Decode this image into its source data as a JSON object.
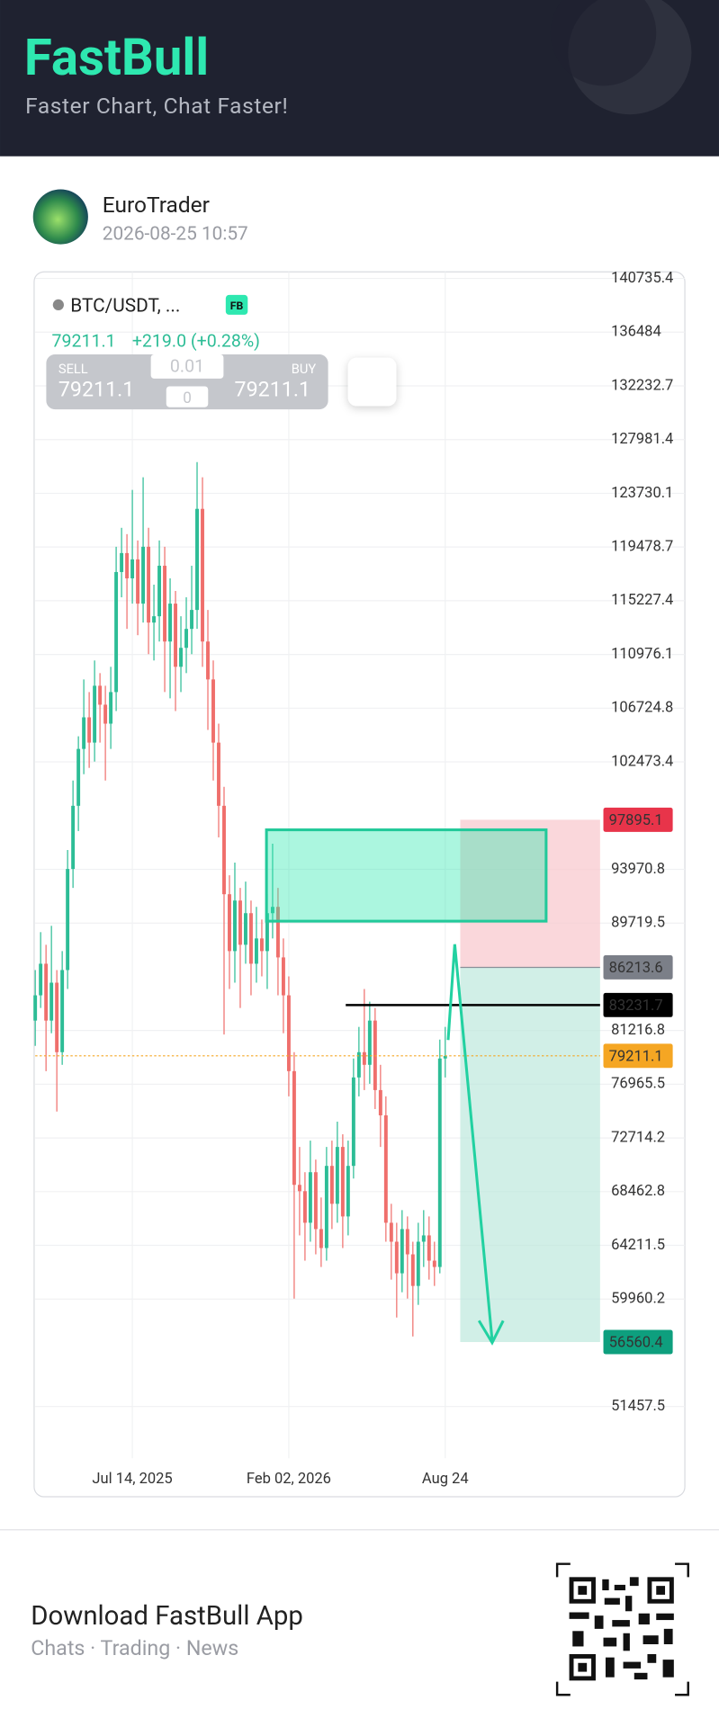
{
  "header": {
    "title": "FastBull",
    "tagline": "Faster Chart, Chat Faster!"
  },
  "user": {
    "name": "EuroTrader",
    "time": "2026-08-25 10:57"
  },
  "footer": {
    "title": "Download FastBull App",
    "subtitle": "Chats · Trading · News"
  },
  "chart_data": {
    "type": "candlestick",
    "symbol": "BTC/USDT, ...",
    "badge": "FB",
    "last_price": 79211.1,
    "change": "+219.0 (+0.28%)",
    "sell_label": "SELL",
    "sell_price": 79211.1,
    "buy_label": "BUY",
    "buy_price": 79211.1,
    "order_quantity": 0.01,
    "order_count": 0,
    "up_color": "#2dbd96",
    "down_color": "#ef6f6c",
    "grid": true,
    "xlim": [
      0,
      104.7
    ],
    "xticks": [
      {
        "value": 18,
        "label": "Jul 14, 2025"
      },
      {
        "value": 47,
        "label": "Feb 02, 2026"
      },
      {
        "value": 76,
        "label": "Aug 24"
      }
    ],
    "ylim": [
      47363,
      141258
    ],
    "yticks": [
      140735.4,
      136484.0,
      132232.7,
      127981.4,
      123730.1,
      119478.7,
      115227.4,
      110976.1,
      106724.8,
      102473.4,
      93970.8,
      89719.5,
      81216.8,
      76965.5,
      72714.2,
      68462.8,
      64211.5,
      59960.2,
      51457.5
    ],
    "open": [
      82000,
      84000,
      86500,
      82000,
      85000,
      79500,
      86000,
      94000,
      99000,
      103500,
      106000,
      104000,
      108500,
      107000,
      105500,
      108000,
      117500,
      119000,
      117000,
      118500,
      115000,
      119500,
      113500,
      114000,
      118000,
      112000,
      115000,
      110000,
      111500,
      113000,
      114500,
      122500,
      112000,
      109000,
      104000,
      99000,
      92000,
      87500,
      91500,
      88000,
      90500,
      86500,
      88500,
      87500,
      90500,
      91000,
      87000,
      84000,
      78000,
      69000,
      68500,
      66000,
      70000,
      65500,
      64000,
      70500,
      67500,
      72000,
      66500,
      70500,
      77500,
      79500,
      78500,
      82000,
      76500,
      74500,
      66000,
      64500,
      62000,
      65500,
      63500,
      61000,
      64500,
      65000,
      63000,
      62500,
      79000
    ],
    "high": [
      86000,
      89000,
      88000,
      89500,
      86000,
      87500,
      95500,
      101000,
      104500,
      109000,
      108000,
      110500,
      109500,
      108500,
      110000,
      119500,
      121000,
      120500,
      124000,
      120000,
      125000,
      121000,
      116500,
      120000,
      119500,
      117000,
      116000,
      114000,
      115500,
      118000,
      126200,
      125000,
      114500,
      110500,
      105500,
      100500,
      93500,
      94500,
      92500,
      93000,
      91500,
      91000,
      90000,
      92000,
      96000,
      92500,
      88500,
      85500,
      79500,
      72000,
      70000,
      72500,
      71000,
      68000,
      72000,
      72500,
      74000,
      73000,
      72500,
      79000,
      81500,
      84500,
      83500,
      83000,
      78500,
      76000,
      67500,
      66000,
      67000,
      66500,
      64500,
      66000,
      67000,
      66500,
      64500,
      80500,
      81500
    ],
    "low": [
      80000,
      83000,
      78000,
      81000,
      74800,
      78500,
      84500,
      92500,
      97000,
      101500,
      102000,
      102500,
      104000,
      101000,
      103500,
      106500,
      115500,
      113000,
      115000,
      112500,
      113500,
      111000,
      110500,
      112000,
      108000,
      107500,
      106500,
      108000,
      109500,
      111000,
      113000,
      110000,
      105000,
      101000,
      96500,
      80900,
      84500,
      85000,
      83000,
      86500,
      84000,
      85000,
      85500,
      84500,
      88500,
      84000,
      81000,
      76000,
      60000,
      65000,
      63000,
      64500,
      63500,
      62500,
      63000,
      65500,
      66000,
      64000,
      65000,
      69500,
      76000,
      76500,
      77000,
      75000,
      72000,
      64500,
      61500,
      58500,
      60500,
      60000,
      57000,
      59500,
      62500,
      61500,
      61000,
      62000,
      77500
    ],
    "close": [
      84000,
      86500,
      82000,
      85000,
      79500,
      86000,
      94000,
      99000,
      103500,
      106000,
      104000,
      108500,
      107000,
      105500,
      108000,
      117500,
      119000,
      117000,
      118500,
      115000,
      119500,
      113500,
      114000,
      118000,
      112000,
      115000,
      110000,
      111500,
      113000,
      114500,
      122500,
      112000,
      109000,
      104000,
      99000,
      92000,
      87500,
      91500,
      88000,
      90500,
      86500,
      88500,
      87500,
      90500,
      91000,
      87000,
      84000,
      78000,
      69000,
      68500,
      66000,
      70000,
      65500,
      64000,
      70500,
      67500,
      72000,
      66500,
      70500,
      77500,
      79500,
      78500,
      82000,
      76500,
      74500,
      66000,
      64500,
      62000,
      65500,
      63500,
      61000,
      64500,
      65000,
      63000,
      62500,
      79000,
      79211.1
    ],
    "price_tags": [
      {
        "value": 97895.1,
        "color": "#e8344a"
      },
      {
        "value": 86213.6,
        "color": "#7b7f88"
      },
      {
        "value": 83231.7,
        "color": "#000000"
      },
      {
        "value": 79211.1,
        "color": "#f5a623"
      },
      {
        "value": 56560.4,
        "color": "#0e9f7e"
      }
    ]
  }
}
